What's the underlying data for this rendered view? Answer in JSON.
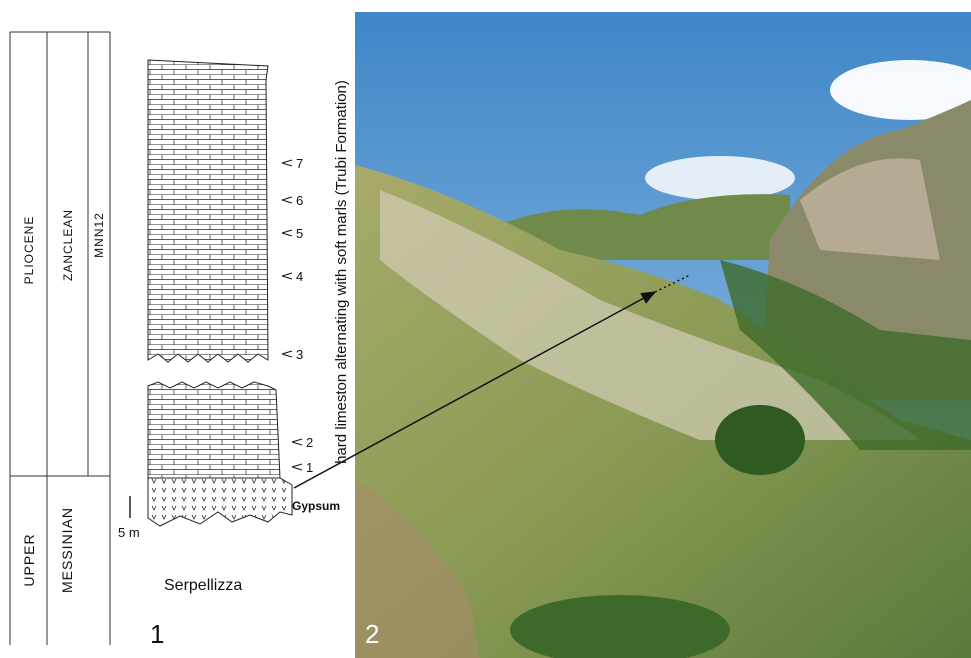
{
  "figure": {
    "chronostratigraphy": {
      "upper_unit": {
        "series": "PLIOCENE",
        "stage": "ZANCLEAN",
        "zone": "MNN12"
      },
      "lower_unit": {
        "series": "UPPER",
        "stage": "MESSINIAN"
      }
    },
    "column": {
      "section_name": "Serpellizza",
      "scale": "5 m",
      "gypsum": "Gypsum",
      "formation": "hard limeston alternating with soft marls (Trubi Formation)",
      "samples": [
        "7",
        "6",
        "5",
        "4",
        "3",
        "2",
        "1"
      ]
    },
    "panel_labels": [
      "1",
      "2"
    ]
  }
}
